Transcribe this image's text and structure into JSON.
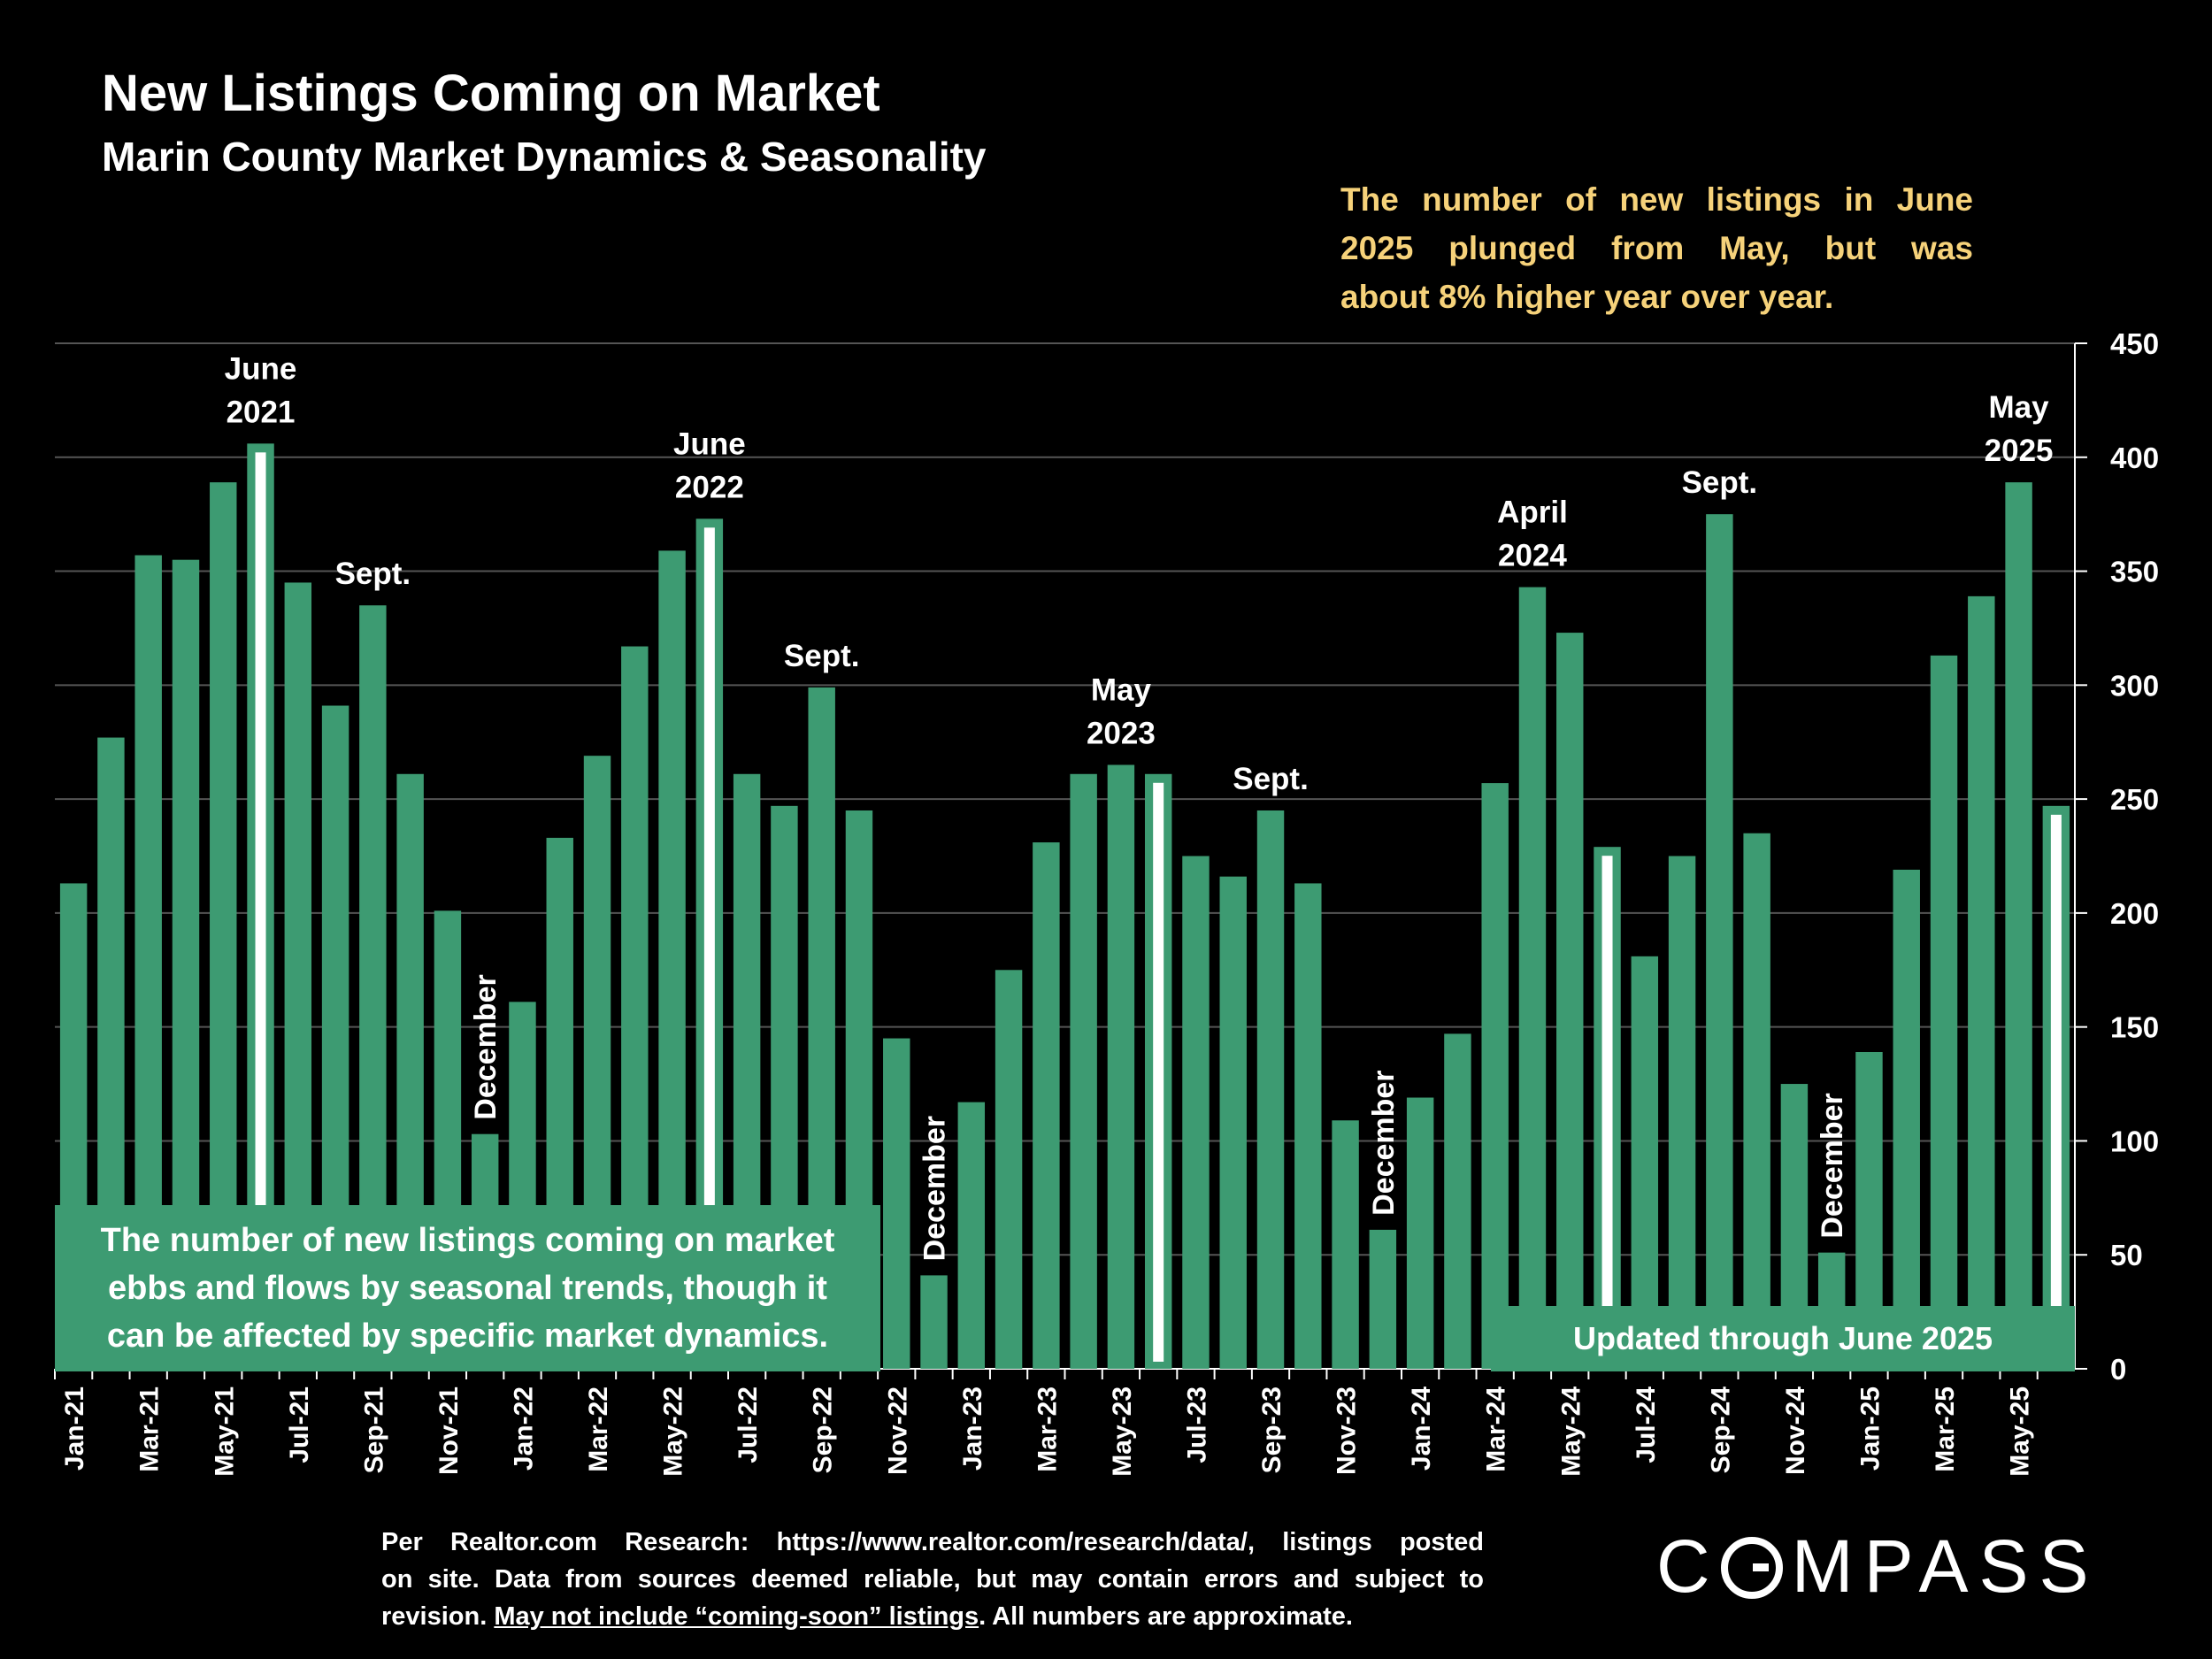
{
  "header": {
    "title": "New Listings Coming on Market",
    "subtitle": "Marin County Market Dynamics & Seasonality"
  },
  "callout": {
    "lines": [
      "The number of new listings in June",
      "2025 plunged from May, but was",
      "about 8% higher year over year."
    ]
  },
  "text_box": {
    "lines": [
      "The number of new listings coming on market",
      "ebbs and flows by seasonal trends, though it",
      "can be affected by specific market dynamics."
    ]
  },
  "updated_box": {
    "label": "Updated through June 2025"
  },
  "source": {
    "line1": "Per Realtor.com Research:  https://www.realtor.com/research/data/, listings posted",
    "line2": "on site. Data from sources deemed reliable, but may contain errors and subject to",
    "line3_pre": "revision. ",
    "line3_underlined": "May not include “coming-soon” listings",
    "line3_post": ". All numbers are approximate."
  },
  "logo": {
    "text_rest": "MPASS",
    "text_first": "C"
  },
  "colors": {
    "bar": "#3d9b72",
    "highlight": "#ffffff",
    "grid": "#555555",
    "callout": "#f6d27a",
    "background": "#000000"
  },
  "chart_data": {
    "type": "bar",
    "title": "New Listings Coming on Market",
    "subtitle": "Marin County Market Dynamics & Seasonality",
    "ylim": [
      0,
      450
    ],
    "yticks": [
      0,
      50,
      100,
      150,
      200,
      250,
      300,
      350,
      400,
      450
    ],
    "y_axis_side": "right",
    "grid": true,
    "categories": [
      "Jan-21",
      "Feb-21",
      "Mar-21",
      "Apr-21",
      "May-21",
      "Jun-21",
      "Jul-21",
      "Aug-21",
      "Sep-21",
      "Oct-21",
      "Nov-21",
      "Dec-21",
      "Jan-22",
      "Feb-22",
      "Mar-22",
      "Apr-22",
      "May-22",
      "Jun-22",
      "Jul-22",
      "Aug-22",
      "Sep-22",
      "Oct-22",
      "Nov-22",
      "Dec-22",
      "Jan-23",
      "Feb-23",
      "Mar-23",
      "Apr-23",
      "May-23",
      "Jun-23",
      "Jul-23",
      "Aug-23",
      "Sep-23",
      "Oct-23",
      "Nov-23",
      "Dec-23",
      "Jan-24",
      "Feb-24",
      "Mar-24",
      "Apr-24",
      "May-24",
      "Jun-24",
      "Jul-24",
      "Aug-24",
      "Sep-24",
      "Oct-24",
      "Nov-24",
      "Dec-24",
      "Jan-25",
      "Feb-25",
      "Mar-25",
      "Apr-25",
      "May-25",
      "Jun-25"
    ],
    "x_tick_labels": [
      "Jan-21",
      "Mar-21",
      "May-21",
      "Jul-21",
      "Sep-21",
      "Nov-21",
      "Jan-22",
      "Mar-22",
      "May-22",
      "Jul-22",
      "Sep-22",
      "Nov-22",
      "Jan-23",
      "Mar-23",
      "May-23",
      "Jul-23",
      "Sep-23",
      "Nov-23",
      "Jan-24",
      "Mar-24",
      "May-24",
      "Jul-24",
      "Sep-24",
      "Nov-24",
      "Jan-25",
      "Mar-25",
      "May-25"
    ],
    "values": [
      213,
      277,
      357,
      355,
      389,
      406,
      345,
      291,
      335,
      261,
      201,
      103,
      161,
      233,
      269,
      317,
      359,
      373,
      261,
      247,
      299,
      245,
      145,
      41,
      117,
      175,
      231,
      261,
      265,
      261,
      225,
      216,
      245,
      213,
      109,
      61,
      119,
      147,
      257,
      343,
      323,
      229,
      181,
      225,
      375,
      235,
      125,
      51,
      139,
      219,
      313,
      339,
      389,
      247
    ],
    "highlighted_months": [
      "Jun-21",
      "Jun-22",
      "Jun-23",
      "Jun-24",
      "Jun-25"
    ],
    "annotations": [
      {
        "month": "Jun-21",
        "text": "June 2021",
        "lines": [
          "June",
          "2021"
        ]
      },
      {
        "month": "Sep-21",
        "text": "Sept.",
        "lines": [
          "Sept."
        ]
      },
      {
        "month": "Dec-21",
        "text": "December",
        "lines": [
          "December"
        ],
        "rotated": true
      },
      {
        "month": "Jun-22",
        "text": "June 2022",
        "lines": [
          "June",
          "2022"
        ]
      },
      {
        "month": "Sep-22",
        "text": "Sept.",
        "lines": [
          "Sept."
        ]
      },
      {
        "month": "Dec-22",
        "text": "December",
        "lines": [
          "December"
        ],
        "rotated": true
      },
      {
        "month": "May-23",
        "text": "May 2023",
        "lines": [
          "May",
          "2023"
        ]
      },
      {
        "month": "Sep-23",
        "text": "Sept.",
        "lines": [
          "Sept."
        ]
      },
      {
        "month": "Dec-23",
        "text": "December",
        "lines": [
          "December"
        ],
        "rotated": true
      },
      {
        "month": "Apr-24",
        "text": "April 2024",
        "lines": [
          "April",
          "2024"
        ]
      },
      {
        "month": "Sep-24",
        "text": "Sept.",
        "lines": [
          "Sept."
        ]
      },
      {
        "month": "Dec-24",
        "text": "December",
        "lines": [
          "December"
        ],
        "rotated": true
      },
      {
        "month": "May-25",
        "text": "May 2025",
        "lines": [
          "May",
          "2025"
        ]
      }
    ]
  }
}
